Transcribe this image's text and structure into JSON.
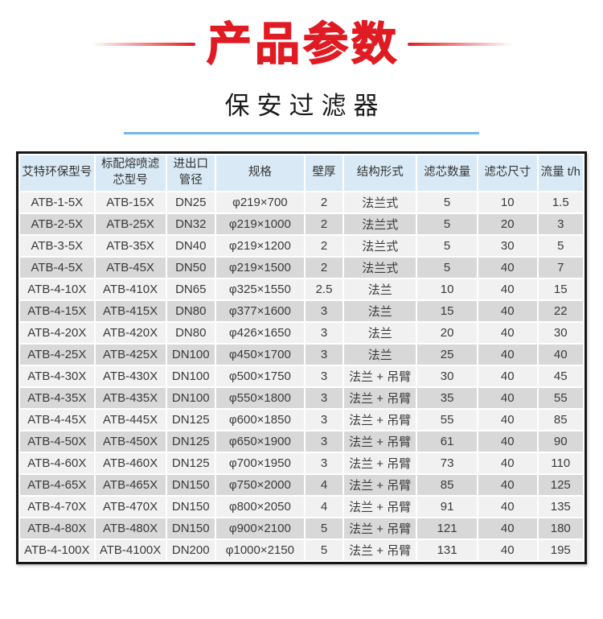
{
  "page": {
    "title": "产品参数",
    "subtitle": "保安过滤器"
  },
  "colors": {
    "accent_red": "#e01b23",
    "subtitle_rule_blue": "#70b8e6",
    "table_header_bg": "#d9eaf6",
    "row_light": "#f1f1f1",
    "row_dark": "#d8d8d8",
    "table_border": "#161616"
  },
  "table": {
    "headers": [
      "艾特环保型号",
      "标配熔喷滤芯型号",
      "进出口管径",
      "规格",
      "壁厚",
      "结构形式",
      "滤芯数量",
      "滤芯尺寸",
      "流量 t/h"
    ],
    "rows": [
      [
        "ATB-1-5X",
        "ATB-15X",
        "DN25",
        "φ219×700",
        "2",
        "法兰式",
        "5",
        "10",
        "1.5"
      ],
      [
        "ATB-2-5X",
        "ATB-25X",
        "DN32",
        "φ219×1000",
        "2",
        "法兰式",
        "5",
        "20",
        "3"
      ],
      [
        "ATB-3-5X",
        "ATB-35X",
        "DN40",
        "φ219×1200",
        "2",
        "法兰式",
        "5",
        "30",
        "5"
      ],
      [
        "ATB-4-5X",
        "ATB-45X",
        "DN50",
        "φ219×1500",
        "2",
        "法兰式",
        "5",
        "40",
        "7"
      ],
      [
        "ATB-4-10X",
        "ATB-410X",
        "DN65",
        "φ325×1550",
        "2.5",
        "法兰",
        "10",
        "40",
        "15"
      ],
      [
        "ATB-4-15X",
        "ATB-415X",
        "DN80",
        "φ377×1600",
        "3",
        "法兰",
        "15",
        "40",
        "22"
      ],
      [
        "ATB-4-20X",
        "ATB-420X",
        "DN80",
        "φ426×1650",
        "3",
        "法兰",
        "20",
        "40",
        "30"
      ],
      [
        "ATB-4-25X",
        "ATB-425X",
        "DN100",
        "φ450×1700",
        "3",
        "法兰",
        "25",
        "40",
        "40"
      ],
      [
        "ATB-4-30X",
        "ATB-430X",
        "DN100",
        "φ500×1750",
        "3",
        "法兰 + 吊臂",
        "30",
        "40",
        "45"
      ],
      [
        "ATB-4-35X",
        "ATB-435X",
        "DN100",
        "φ550×1800",
        "3",
        "法兰 + 吊臂",
        "35",
        "40",
        "55"
      ],
      [
        "ATB-4-45X",
        "ATB-445X",
        "DN125",
        "φ600×1850",
        "3",
        "法兰 + 吊臂",
        "55",
        "40",
        "85"
      ],
      [
        "ATB-4-50X",
        "ATB-450X",
        "DN125",
        "φ650×1900",
        "3",
        "法兰 + 吊臂",
        "61",
        "40",
        "90"
      ],
      [
        "ATB-4-60X",
        "ATB-460X",
        "DN125",
        "φ700×1950",
        "3",
        "法兰 + 吊臂",
        "73",
        "40",
        "110"
      ],
      [
        "ATB-4-65X",
        "ATB-465X",
        "DN150",
        "φ750×2000",
        "4",
        "法兰 + 吊臂",
        "85",
        "40",
        "125"
      ],
      [
        "ATB-4-70X",
        "ATB-470X",
        "DN150",
        "φ800×2050",
        "4",
        "法兰 + 吊臂",
        "91",
        "40",
        "135"
      ],
      [
        "ATB-4-80X",
        "ATB-480X",
        "DN150",
        "φ900×2100",
        "5",
        "法兰 + 吊臂",
        "121",
        "40",
        "180"
      ],
      [
        "ATB-4-100X",
        "ATB-4100X",
        "DN200",
        "φ1000×2150",
        "5",
        "法兰 + 吊臂",
        "131",
        "40",
        "195"
      ]
    ]
  }
}
